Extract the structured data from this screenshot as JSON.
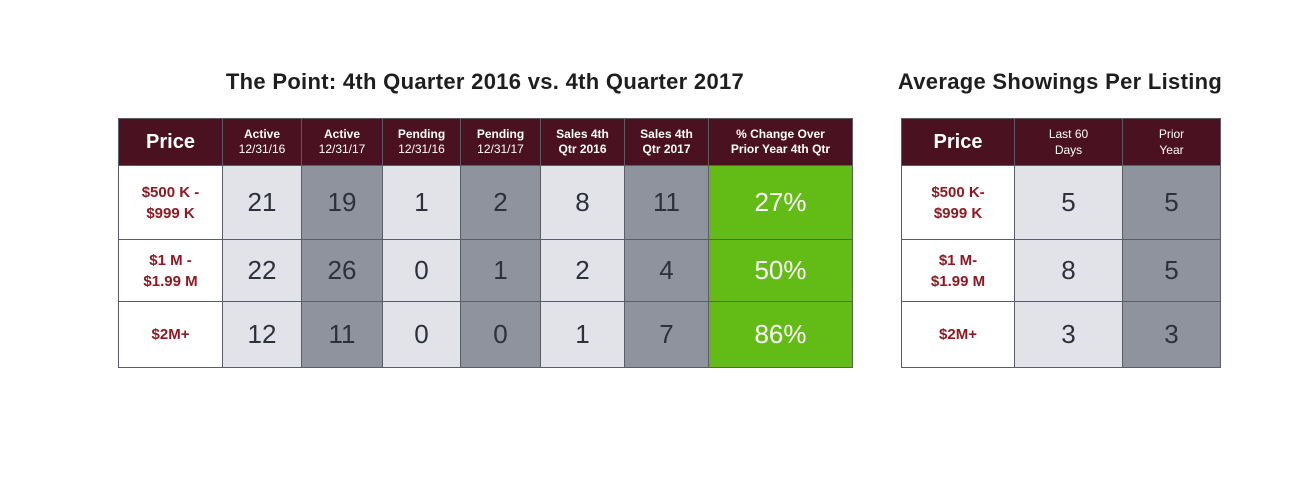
{
  "chart_data": [
    {
      "type": "table",
      "title": "The Point: 4th Quarter 2016 vs. 4th Quarter 2017",
      "columns": [
        {
          "line1": "Price",
          "line2": ""
        },
        {
          "line1": "Active",
          "line2": "12/31/16"
        },
        {
          "line1": "Active",
          "line2": "12/31/17"
        },
        {
          "line1": "Pending",
          "line2": "12/31/16"
        },
        {
          "line1": "Pending",
          "line2": "12/31/17"
        },
        {
          "line1": "Sales 4th",
          "line2": "Qtr 2016"
        },
        {
          "line1": "Sales 4th",
          "line2": "Qtr 2017"
        },
        {
          "line1": "% Change Over",
          "line2": "Prior Year 4th Qtr"
        }
      ],
      "rows": [
        {
          "price": [
            "$500 K -",
            "$999 K"
          ],
          "values": [
            "21",
            "19",
            "1",
            "2",
            "8",
            "11",
            "27%"
          ]
        },
        {
          "price": [
            "$1 M -",
            "$1.99 M"
          ],
          "values": [
            "22",
            "26",
            "0",
            "1",
            "2",
            "4",
            "50%"
          ]
        },
        {
          "price": [
            "$2M+"
          ],
          "values": [
            "12",
            "11",
            "0",
            "0",
            "1",
            "7",
            "86%"
          ]
        }
      ],
      "colors": {
        "header": "#4a1220",
        "price_text": "#8c1a22",
        "light_cell": "#e1e3e8",
        "dark_cell": "#8e939e",
        "highlight": "#63bc16"
      }
    },
    {
      "type": "table",
      "title": "Average Showings Per Listing",
      "columns": [
        {
          "line1": "Price",
          "line2": ""
        },
        {
          "line1": "Last 60",
          "line2": "Days"
        },
        {
          "line1": "Prior",
          "line2": "Year"
        }
      ],
      "rows": [
        {
          "price": [
            "$500 K-",
            "$999 K"
          ],
          "values": [
            "5",
            "5"
          ]
        },
        {
          "price": [
            "$1 M-",
            "$1.99 M"
          ],
          "values": [
            "8",
            "5"
          ]
        },
        {
          "price": [
            "$2M+"
          ],
          "values": [
            "3",
            "3"
          ]
        }
      ]
    }
  ]
}
